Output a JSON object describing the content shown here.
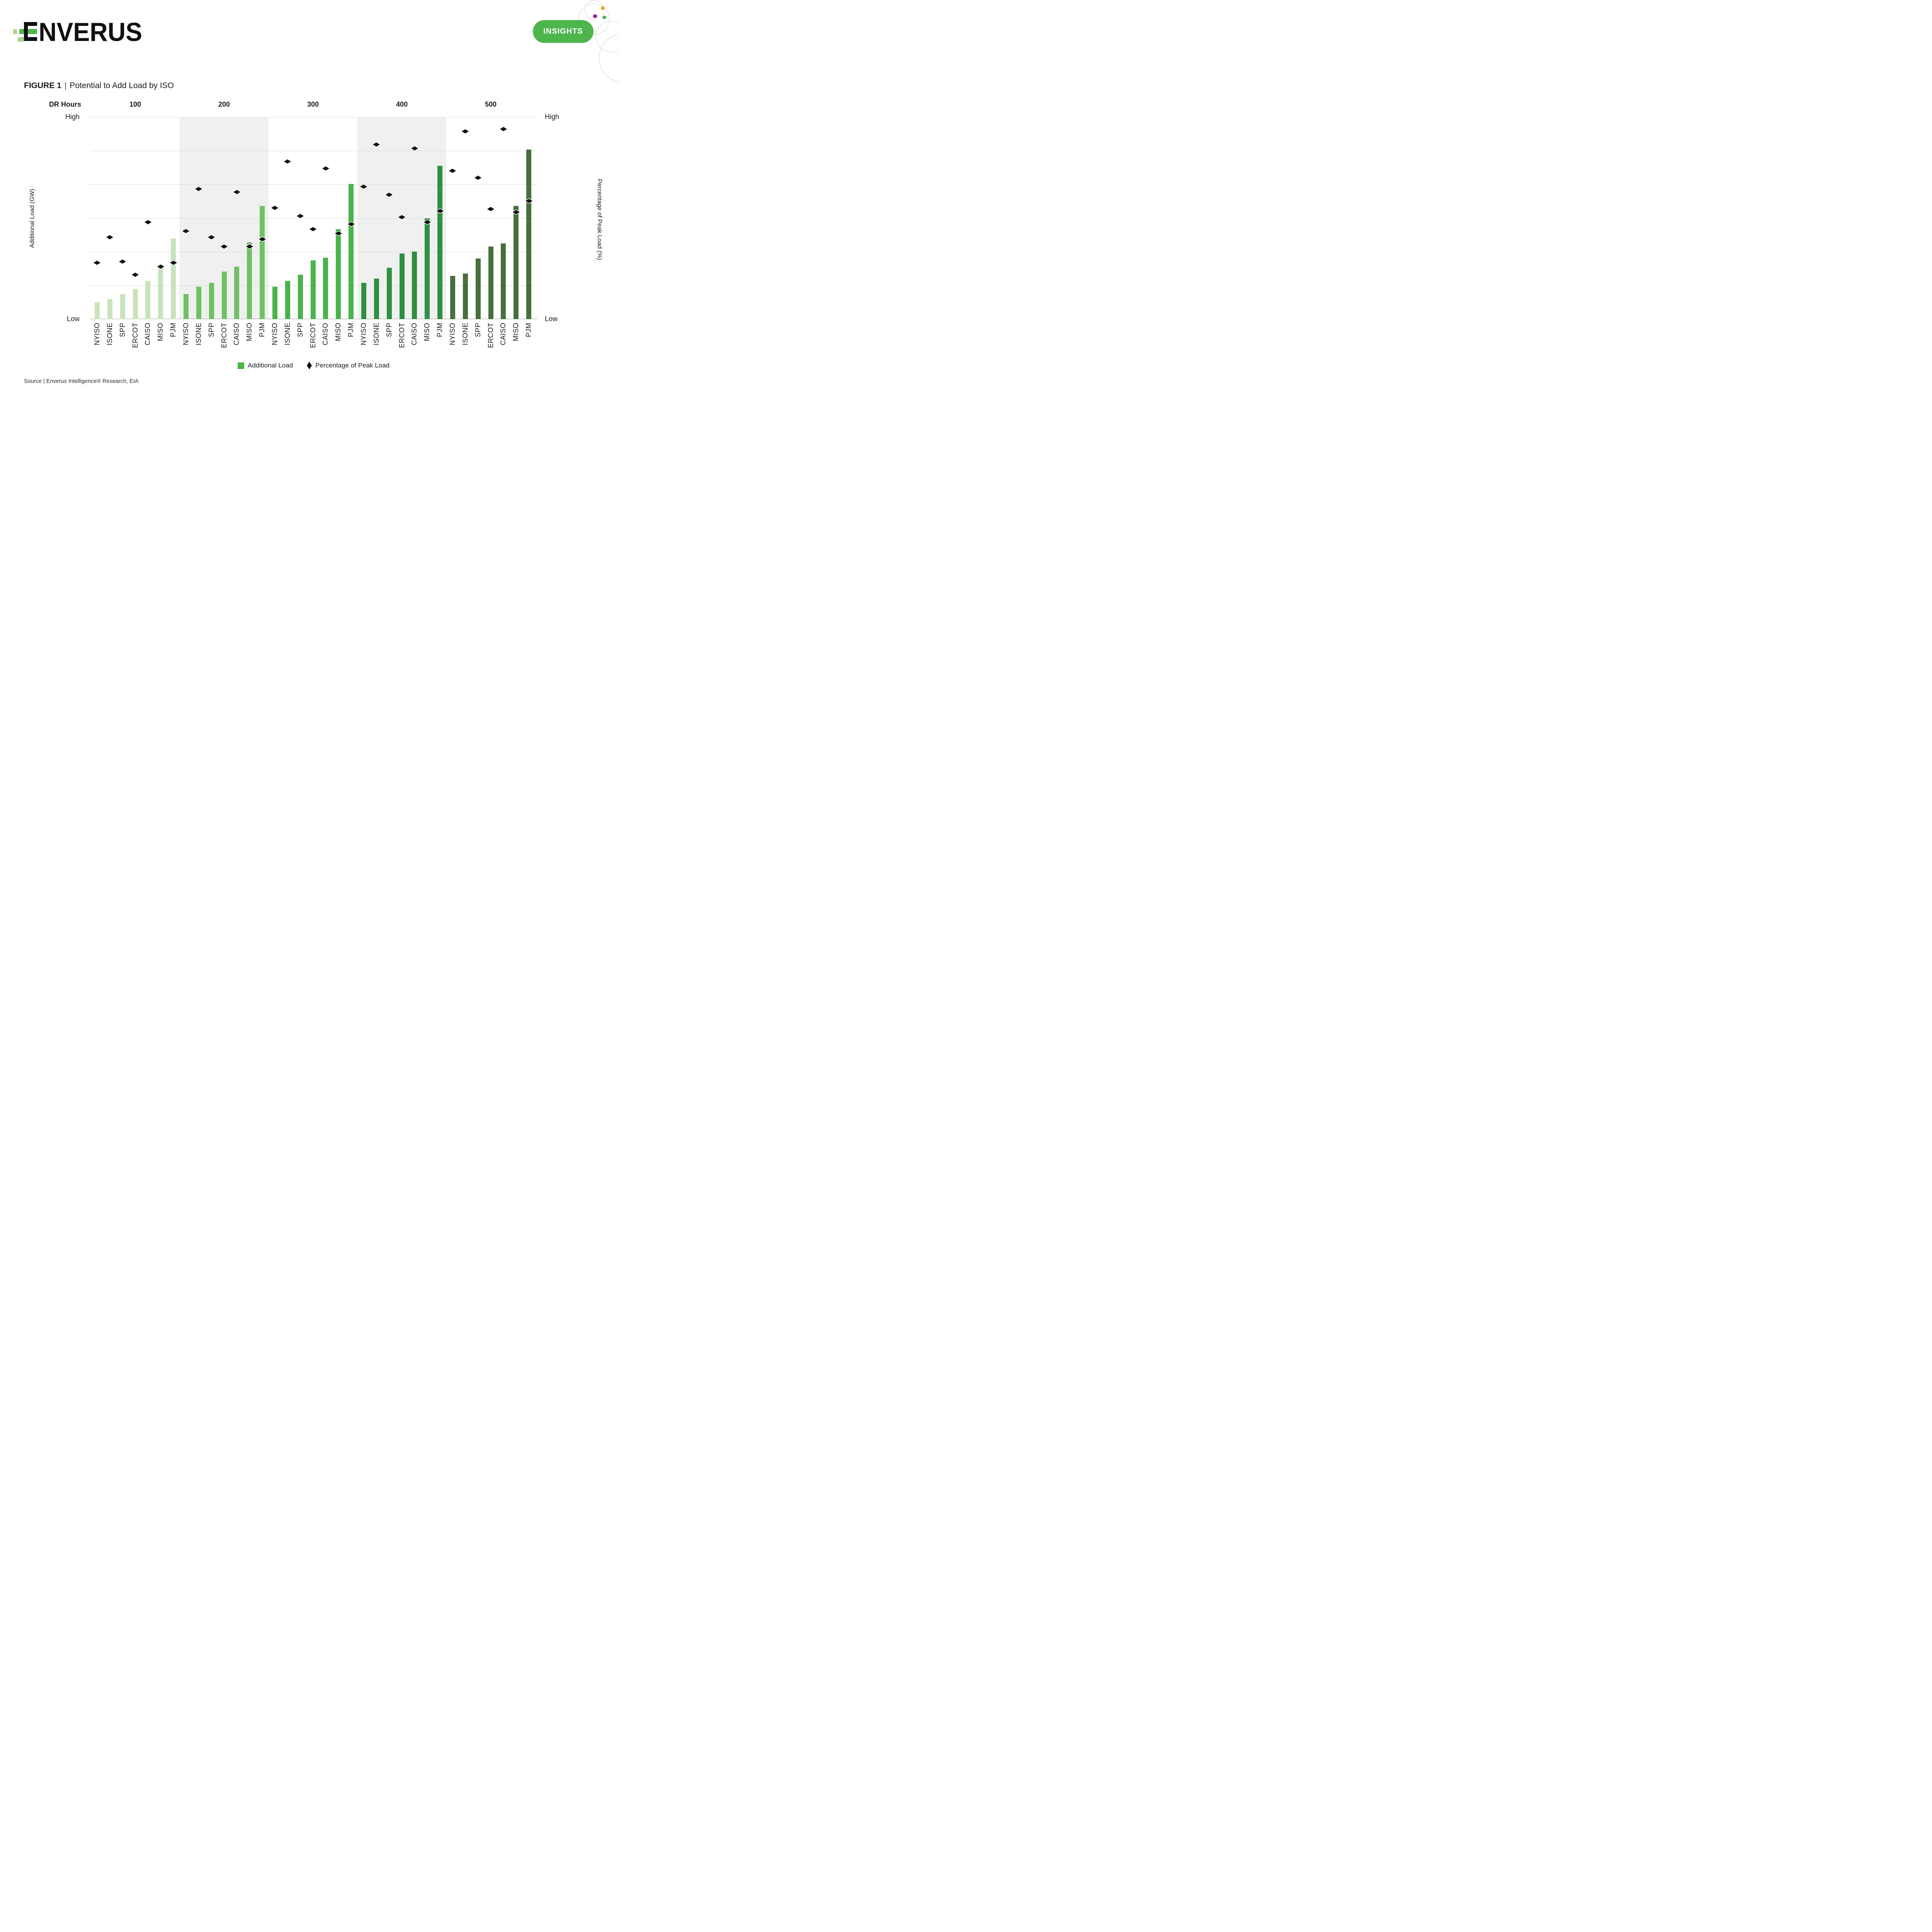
{
  "header": {
    "logo_text": "ENVERUS",
    "insights_label": "INSIGHTS"
  },
  "title": {
    "figure": "FIGURE 1",
    "separator": "|",
    "rest": "Potential to Add Load by ISO"
  },
  "axes": {
    "dr_hours_label": "DR Hours",
    "left_title": "Additional Load (GW)",
    "right_title": "Percentage of Peak Load (%)",
    "left_high": "High",
    "left_low": "Low",
    "right_high": "High",
    "right_low": "Low"
  },
  "legend": [
    {
      "label": "Additional Load",
      "marker": "square",
      "color": "#4cb648"
    },
    {
      "label": "Percentage of Peak Load",
      "marker": "diamond",
      "color": "#121212"
    }
  ],
  "source": "Source | Enverus Intelligence® Research, EIA",
  "colors": {
    "accent_green": "#4cb648",
    "logo_light_green": "#a9d48c",
    "pill_green": "#4cb64c",
    "dot_orange": "#f49b22",
    "dot_purple": "#8d3090",
    "dot_green": "#4cb648",
    "circle_gray": "#d2d2d2"
  },
  "chart_data": {
    "type": "bar",
    "subtype": "grouped bars with diamond scatter overlay",
    "title": "Potential to Add Load by ISO",
    "group_axis_label": "DR Hours",
    "groups": [
      "100",
      "200",
      "300",
      "400",
      "500"
    ],
    "categories": [
      "NYISO",
      "ISONE",
      "SPP",
      "ERCOT",
      "CAISO",
      "MISO",
      "PJM"
    ],
    "ylabel_left": "Additional Load (GW)",
    "ylabel_right": "Percentage of Peak Load (%)",
    "ylim": [
      0,
      100
    ],
    "y_scale_note": "No numeric ticks in figure; values are percent of axis height, Low = 0, High = 100",
    "grid": true,
    "legend_position": "bottom",
    "series": [
      {
        "name": "Additional Load",
        "type": "bar",
        "axis": "left",
        "values_by_group": {
          "100": [
            8.5,
            10,
            12.5,
            15,
            19,
            27,
            40
          ],
          "200": [
            12.5,
            16,
            18,
            23.5,
            26,
            38,
            56
          ],
          "300": [
            16,
            19,
            22,
            29,
            30.5,
            44.5,
            67
          ],
          "400": [
            18,
            20,
            25.5,
            32.5,
            33.5,
            50,
            76
          ],
          "500": [
            21.5,
            22.5,
            30,
            36,
            37.5,
            56,
            84
          ]
        }
      },
      {
        "name": "Percentage of Peak Load",
        "type": "scatter",
        "marker": "diamond",
        "axis": "right",
        "values_by_group": {
          "100": [
            28,
            40.5,
            28.5,
            22,
            48,
            26,
            28
          ],
          "200": [
            43.5,
            64.5,
            40.5,
            36,
            63,
            36,
            39.5
          ],
          "300": [
            55,
            78,
            51,
            44.5,
            74.5,
            42.5,
            47
          ],
          "400": [
            65.5,
            86.5,
            61.5,
            50.5,
            84.5,
            48,
            53.5
          ],
          "500": [
            73.5,
            93,
            70,
            54.5,
            94,
            53,
            58.5
          ]
        }
      }
    ],
    "bar_colors_by_group": {
      "100": "#c8e3bb",
      "200": "#6fc164",
      "300": "#48b44a",
      "400": "#2e9040",
      "500": "#476f3c"
    },
    "shaded_groups": [
      "200",
      "400"
    ],
    "shade_color": "#f0f0f0",
    "gridline_color": "#dcdcdc",
    "baseline_color": "#a6a6a6",
    "diamond_color": "#121212"
  }
}
